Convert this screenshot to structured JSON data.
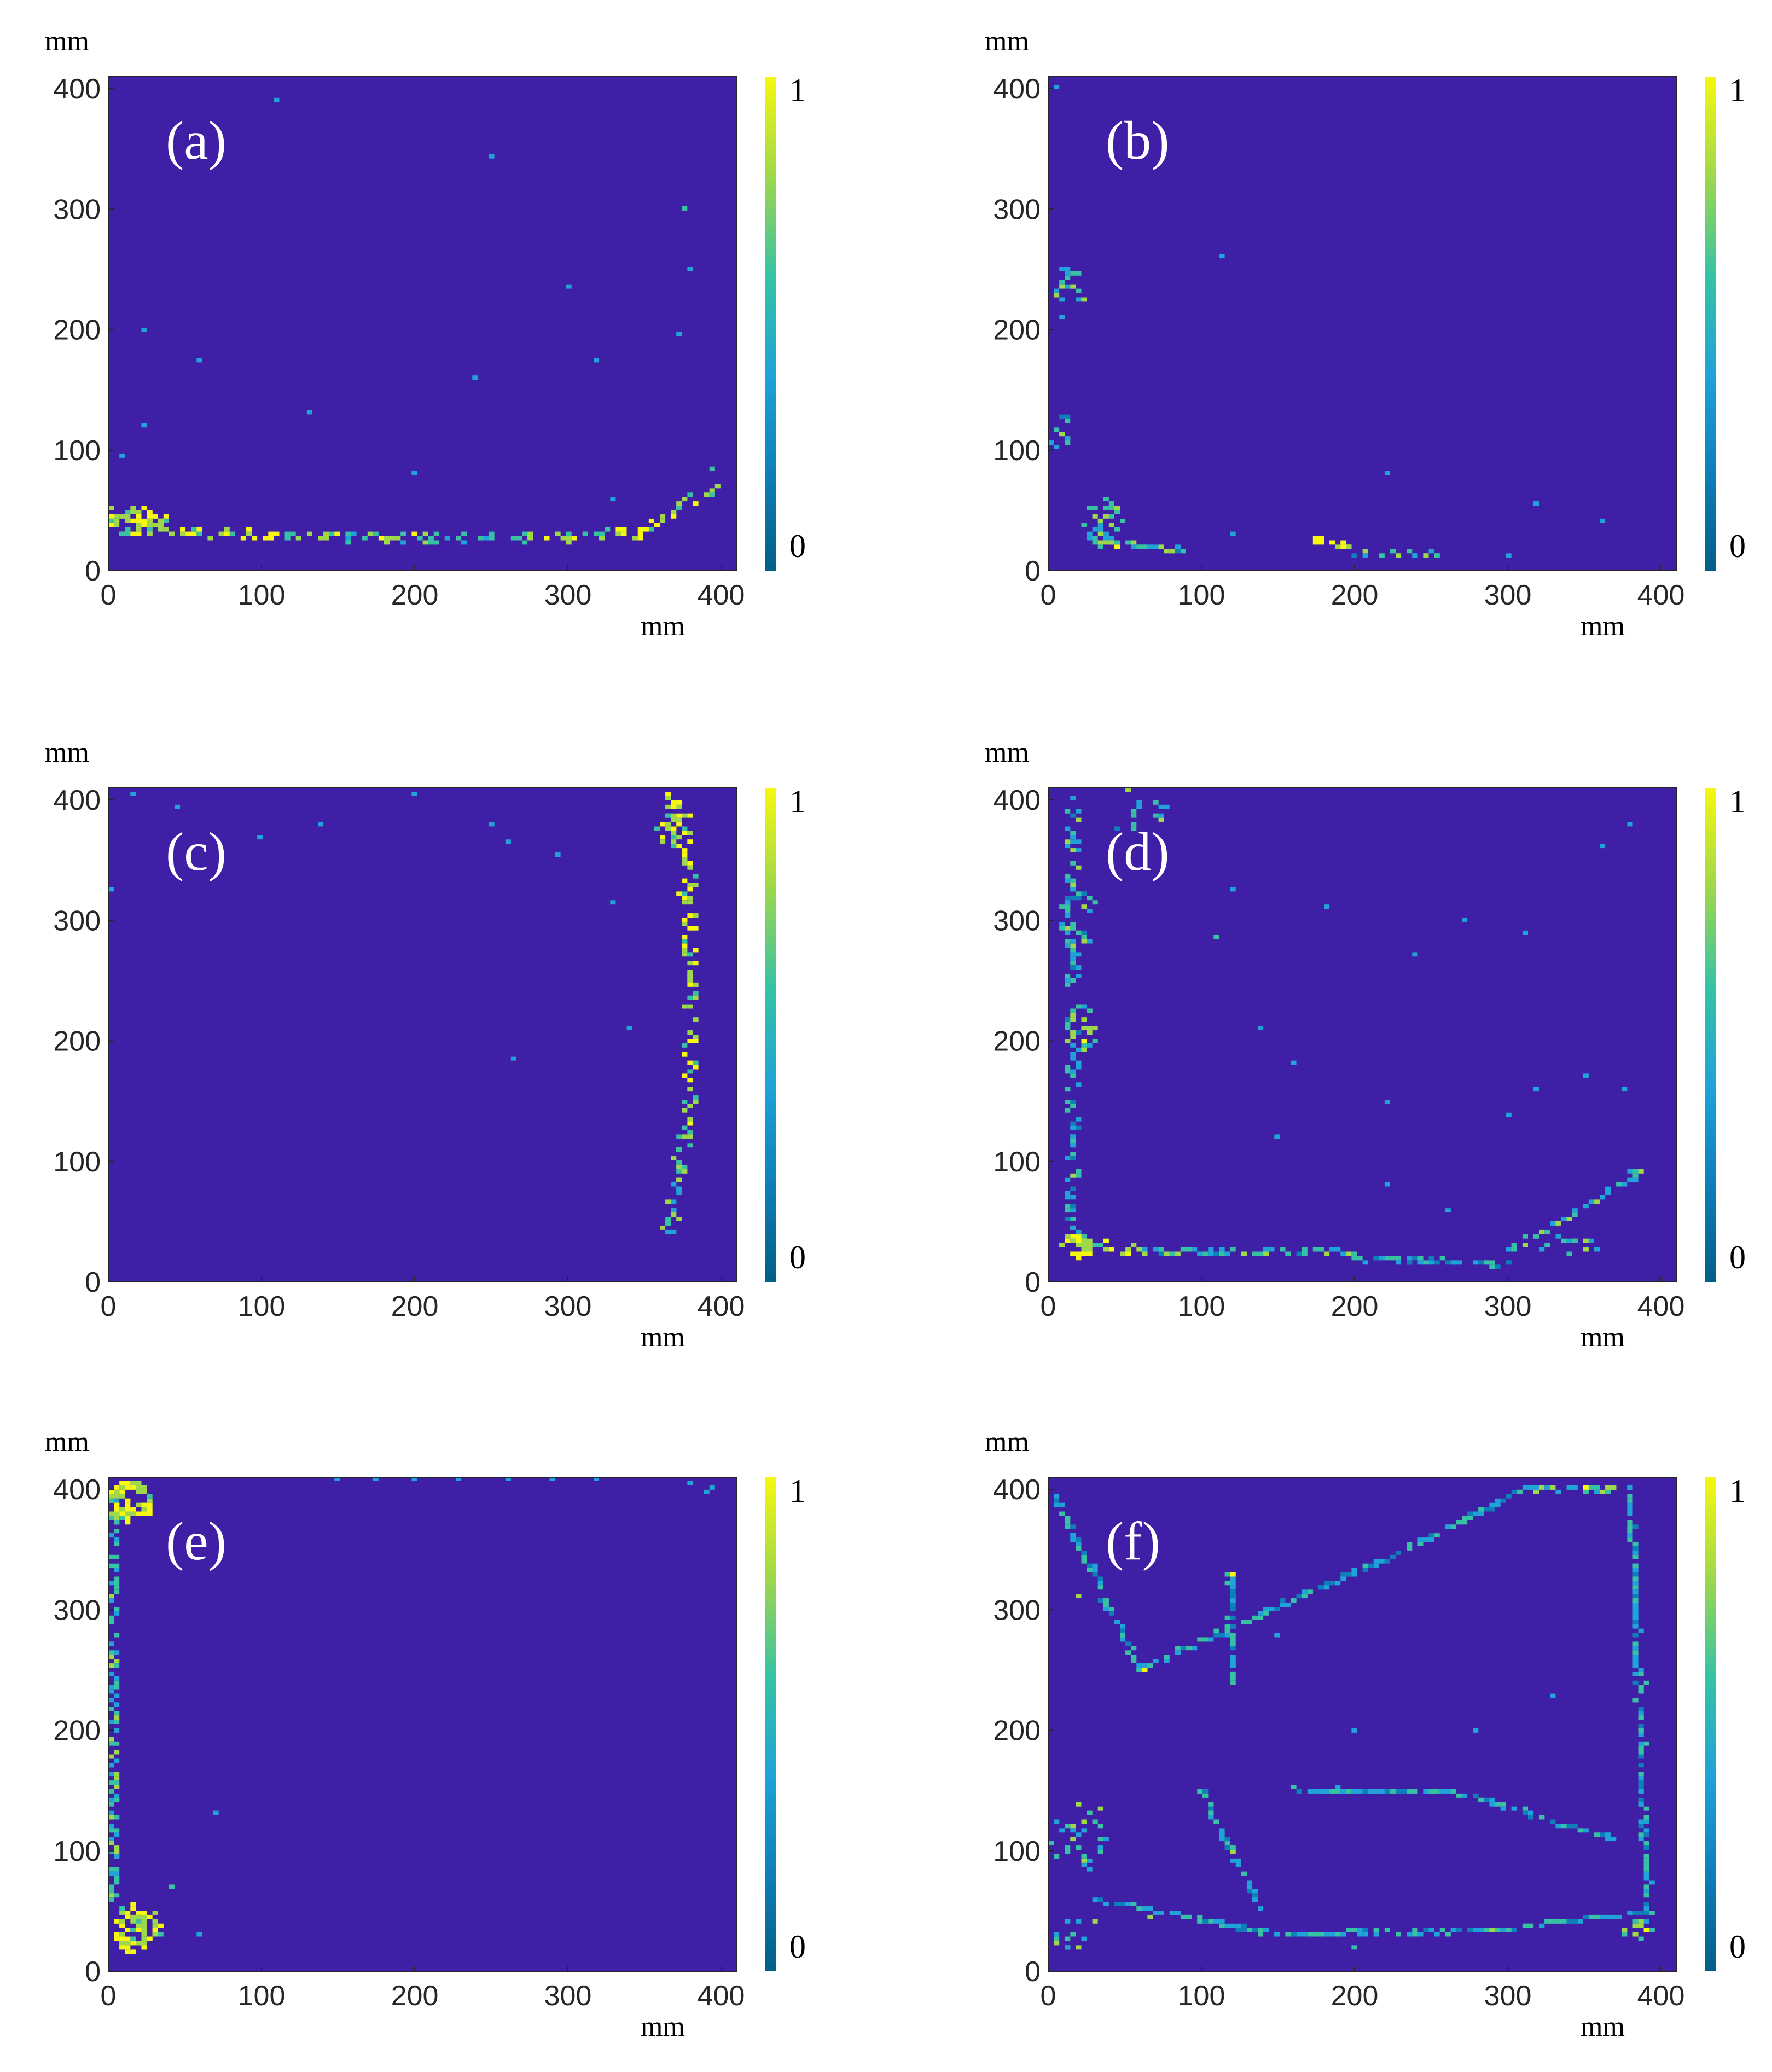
{
  "figure": {
    "colors": {
      "background": "#3F1FA6",
      "colormap": [
        "#005F86",
        "#0F7FBA",
        "#1FA3D8",
        "#37C3A3",
        "#9FD84A",
        "#F7F70F"
      ],
      "text": "#262626"
    }
  },
  "chart_data": [
    {
      "type": "heatmap",
      "panel_label": "(a)",
      "xlabel": "mm",
      "ylabel": "mm",
      "xlim": [
        0,
        410
      ],
      "ylim": [
        0,
        410
      ],
      "xticks": [
        0,
        100,
        200,
        300,
        400
      ],
      "yticks": [
        0,
        100,
        200,
        300,
        400
      ],
      "colorbar": {
        "min_label": "0",
        "max_label": "1",
        "range": [
          0,
          1
        ]
      },
      "background_value": 0,
      "segments": [
        {
          "x0": 5,
          "y0": 50,
          "x1": 40,
          "y1": 35,
          "value": 0.9,
          "width": 10
        },
        {
          "x0": 40,
          "y0": 32,
          "x1": 120,
          "y1": 28,
          "value": 0.85,
          "width": 6
        },
        {
          "x0": 120,
          "y0": 28,
          "x1": 300,
          "y1": 27,
          "value": 0.7,
          "width": 6
        },
        {
          "x0": 300,
          "y0": 28,
          "x1": 350,
          "y1": 32,
          "value": 0.85,
          "width": 8
        },
        {
          "x0": 350,
          "y0": 35,
          "x1": 395,
          "y1": 70,
          "value": 0.8,
          "width": 10
        }
      ],
      "clusters": [
        {
          "x": 20,
          "y": 40,
          "rx": 20,
          "ry": 12,
          "count": 60,
          "value": 0.85
        }
      ],
      "scatter": [
        {
          "x": 375,
          "y": 300,
          "value": 0.5
        },
        {
          "x": 378,
          "y": 250,
          "value": 0.4
        },
        {
          "x": 374,
          "y": 195,
          "value": 0.4
        },
        {
          "x": 395,
          "y": 85,
          "value": 0.5
        },
        {
          "x": 10,
          "y": 95,
          "value": 0.4
        },
        {
          "x": 22,
          "y": 120,
          "value": 0.4
        },
        {
          "x": 25,
          "y": 200,
          "value": 0.4
        },
        {
          "x": 60,
          "y": 175,
          "value": 0.4
        },
        {
          "x": 150,
          "y": 415,
          "value": 0.4
        },
        {
          "x": 240,
          "y": 160,
          "value": 0.4
        },
        {
          "x": 250,
          "y": 345,
          "value": 0.4
        },
        {
          "x": 300,
          "y": 235,
          "value": 0.4
        },
        {
          "x": 320,
          "y": 175,
          "value": 0.4
        },
        {
          "x": 108,
          "y": 390,
          "value": 0.4
        },
        {
          "x": 130,
          "y": 130,
          "value": 0.4
        },
        {
          "x": 200,
          "y": 80,
          "value": 0.4
        },
        {
          "x": 330,
          "y": 60,
          "value": 0.4
        }
      ]
    },
    {
      "type": "heatmap",
      "panel_label": "(b)",
      "xlabel": "mm",
      "ylabel": "mm",
      "xlim": [
        0,
        410
      ],
      "ylim": [
        0,
        410
      ],
      "xticks": [
        0,
        100,
        200,
        300,
        400
      ],
      "yticks": [
        0,
        100,
        200,
        300,
        400
      ],
      "colorbar": {
        "min_label": "0",
        "max_label": "1",
        "range": [
          0,
          1
        ]
      },
      "background_value": 0,
      "segments": [
        {
          "x0": 40,
          "y0": 22,
          "x1": 55,
          "y1": 22,
          "value": 0.9,
          "width": 5
        },
        {
          "x0": 175,
          "y0": 27,
          "x1": 200,
          "y1": 17,
          "value": 0.95,
          "width": 6
        },
        {
          "x0": 55,
          "y0": 20,
          "x1": 90,
          "y1": 17,
          "value": 0.5,
          "width": 3
        },
        {
          "x0": 200,
          "y0": 15,
          "x1": 255,
          "y1": 14,
          "value": 0.5,
          "width": 3
        }
      ],
      "clusters": [
        {
          "x": 35,
          "y": 40,
          "rx": 14,
          "ry": 20,
          "count": 35,
          "value": 0.6
        },
        {
          "x": 14,
          "y": 230,
          "rx": 10,
          "ry": 25,
          "count": 18,
          "value": 0.5
        },
        {
          "x": 10,
          "y": 115,
          "rx": 8,
          "ry": 15,
          "count": 12,
          "value": 0.5
        }
      ],
      "scatter": [
        {
          "x": 5,
          "y": 400,
          "value": 0.4
        },
        {
          "x": 115,
          "y": 260,
          "value": 0.4
        },
        {
          "x": 220,
          "y": 80,
          "value": 0.4
        },
        {
          "x": 320,
          "y": 55,
          "value": 0.4
        },
        {
          "x": 360,
          "y": 40,
          "value": 0.4
        },
        {
          "x": 300,
          "y": 12,
          "value": 0.4
        },
        {
          "x": 120,
          "y": 30,
          "value": 0.4
        }
      ]
    },
    {
      "type": "heatmap",
      "panel_label": "(c)",
      "xlabel": "mm",
      "ylabel": "mm",
      "xlim": [
        0,
        410
      ],
      "ylim": [
        0,
        410
      ],
      "xticks": [
        0,
        100,
        200,
        300,
        400
      ],
      "yticks": [
        0,
        100,
        200,
        300,
        400
      ],
      "colorbar": {
        "min_label": "0",
        "max_label": "1",
        "range": [
          0,
          1
        ]
      },
      "background_value": 0,
      "segments": [
        {
          "x0": 365,
          "y0": 405,
          "x1": 377,
          "y1": 350,
          "value": 0.9,
          "width": 10
        },
        {
          "x0": 377,
          "y0": 350,
          "x1": 382,
          "y1": 250,
          "value": 0.9,
          "width": 9
        },
        {
          "x0": 382,
          "y0": 250,
          "x1": 380,
          "y1": 150,
          "value": 0.85,
          "width": 8
        },
        {
          "x0": 380,
          "y0": 150,
          "x1": 372,
          "y1": 80,
          "value": 0.7,
          "width": 9
        },
        {
          "x0": 372,
          "y0": 80,
          "x1": 365,
          "y1": 40,
          "value": 0.6,
          "width": 8
        }
      ],
      "clusters": [
        {
          "x": 370,
          "y": 380,
          "rx": 12,
          "ry": 20,
          "count": 30,
          "value": 0.8
        }
      ],
      "scatter": [
        {
          "x": 15,
          "y": 405,
          "value": 0.4
        },
        {
          "x": 45,
          "y": 395,
          "value": 0.4
        },
        {
          "x": 100,
          "y": 370,
          "value": 0.4
        },
        {
          "x": 140,
          "y": 380,
          "value": 0.4
        },
        {
          "x": 200,
          "y": 405,
          "value": 0.4
        },
        {
          "x": 250,
          "y": 380,
          "value": 0.4
        },
        {
          "x": 260,
          "y": 365,
          "value": 0.4
        },
        {
          "x": 295,
          "y": 355,
          "value": 0.4
        },
        {
          "x": 330,
          "y": 315,
          "value": 0.4
        },
        {
          "x": 340,
          "y": 210,
          "value": 0.4
        },
        {
          "x": 265,
          "y": 185,
          "value": 0.4
        },
        {
          "x": 0,
          "y": 325,
          "value": 0.4
        }
      ]
    },
    {
      "type": "heatmap",
      "panel_label": "(d)",
      "xlabel": "mm",
      "ylabel": "mm",
      "xlim": [
        0,
        410
      ],
      "ylim": [
        0,
        410
      ],
      "xticks": [
        0,
        100,
        200,
        300,
        400
      ],
      "yticks": [
        0,
        100,
        200,
        300,
        400
      ],
      "colorbar": {
        "min_label": "0",
        "max_label": "1",
        "range": [
          0,
          1
        ]
      },
      "background_value": 0,
      "segments": [
        {
          "x0": 15,
          "y0": 400,
          "x1": 15,
          "y1": 40,
          "value": 0.5,
          "width": 8
        },
        {
          "x0": 15,
          "y0": 35,
          "x1": 60,
          "y1": 25,
          "value": 0.8,
          "width": 10
        },
        {
          "x0": 60,
          "y0": 25,
          "x1": 200,
          "y1": 25,
          "value": 0.5,
          "width": 6
        },
        {
          "x0": 200,
          "y0": 20,
          "x1": 300,
          "y1": 15,
          "value": 0.45,
          "width": 4
        },
        {
          "x0": 300,
          "y0": 25,
          "x1": 390,
          "y1": 95,
          "value": 0.55,
          "width": 6
        }
      ],
      "clusters": [
        {
          "x": 20,
          "y": 30,
          "rx": 10,
          "ry": 10,
          "count": 30,
          "value": 0.9
        },
        {
          "x": 22,
          "y": 210,
          "rx": 10,
          "ry": 20,
          "count": 25,
          "value": 0.7
        },
        {
          "x": 20,
          "y": 300,
          "rx": 15,
          "ry": 25,
          "count": 20,
          "value": 0.5
        },
        {
          "x": 60,
          "y": 390,
          "rx": 20,
          "ry": 20,
          "count": 15,
          "value": 0.5
        },
        {
          "x": 340,
          "y": 30,
          "rx": 20,
          "ry": 8,
          "count": 12,
          "value": 0.6
        }
      ],
      "scatter": [
        {
          "x": 110,
          "y": 285,
          "value": 0.5
        },
        {
          "x": 120,
          "y": 325,
          "value": 0.4
        },
        {
          "x": 180,
          "y": 310,
          "value": 0.4
        },
        {
          "x": 270,
          "y": 300,
          "value": 0.4
        },
        {
          "x": 310,
          "y": 290,
          "value": 0.4
        },
        {
          "x": 240,
          "y": 270,
          "value": 0.4
        },
        {
          "x": 140,
          "y": 210,
          "value": 0.4
        },
        {
          "x": 160,
          "y": 180,
          "value": 0.4
        },
        {
          "x": 220,
          "y": 150,
          "value": 0.4
        },
        {
          "x": 320,
          "y": 160,
          "value": 0.4
        },
        {
          "x": 350,
          "y": 170,
          "value": 0.4
        },
        {
          "x": 375,
          "y": 160,
          "value": 0.4
        },
        {
          "x": 300,
          "y": 140,
          "value": 0.4
        },
        {
          "x": 360,
          "y": 360,
          "value": 0.4
        },
        {
          "x": 380,
          "y": 380,
          "value": 0.4
        },
        {
          "x": 220,
          "y": 80,
          "value": 0.4
        },
        {
          "x": 260,
          "y": 60,
          "value": 0.4
        },
        {
          "x": 150,
          "y": 120,
          "value": 0.4
        }
      ]
    },
    {
      "type": "heatmap",
      "panel_label": "(e)",
      "xlabel": "mm",
      "ylabel": "mm",
      "xlim": [
        0,
        410
      ],
      "ylim": [
        0,
        410
      ],
      "xticks": [
        0,
        100,
        200,
        300,
        400
      ],
      "yticks": [
        0,
        100,
        200,
        300,
        400
      ],
      "colorbar": {
        "min_label": "0",
        "max_label": "1",
        "range": [
          0,
          1
        ]
      },
      "background_value": 0,
      "segments": [
        {
          "x0": 4,
          "y0": 390,
          "x1": 4,
          "y1": 60,
          "value": 0.55,
          "width": 6
        }
      ],
      "clusters": [
        {
          "x": 14,
          "y": 390,
          "rx": 14,
          "ry": 18,
          "count": 60,
          "value": 0.9
        },
        {
          "x": 18,
          "y": 35,
          "rx": 16,
          "ry": 20,
          "count": 80,
          "value": 0.9
        }
      ],
      "scatter": [
        {
          "x": 150,
          "y": 410,
          "value": 0.4
        },
        {
          "x": 175,
          "y": 410,
          "value": 0.4
        },
        {
          "x": 200,
          "y": 410,
          "value": 0.4
        },
        {
          "x": 230,
          "y": 410,
          "value": 0.4
        },
        {
          "x": 260,
          "y": 408,
          "value": 0.4
        },
        {
          "x": 290,
          "y": 410,
          "value": 0.4
        },
        {
          "x": 320,
          "y": 410,
          "value": 0.4
        },
        {
          "x": 380,
          "y": 405,
          "value": 0.4
        },
        {
          "x": 390,
          "y": 398,
          "value": 0.4
        },
        {
          "x": 395,
          "y": 400,
          "value": 0.4
        },
        {
          "x": 70,
          "y": 130,
          "value": 0.4
        },
        {
          "x": 60,
          "y": 30,
          "value": 0.4
        },
        {
          "x": 40,
          "y": 70,
          "value": 0.5
        }
      ]
    },
    {
      "type": "heatmap",
      "panel_label": "(f)",
      "xlabel": "mm",
      "ylabel": "mm",
      "xlim": [
        0,
        410
      ],
      "ylim": [
        0,
        410
      ],
      "xticks": [
        0,
        100,
        200,
        300,
        400
      ],
      "yticks": [
        0,
        100,
        200,
        300,
        400
      ],
      "colorbar": {
        "min_label": "0",
        "max_label": "1",
        "range": [
          0,
          1
        ]
      },
      "background_value": 0,
      "segments": [
        {
          "x0": 5,
          "y0": 395,
          "x1": 60,
          "y1": 250,
          "value": 0.45,
          "width": 3
        },
        {
          "x0": 60,
          "y0": 250,
          "x1": 250,
          "y1": 360,
          "value": 0.4,
          "width": 3
        },
        {
          "x0": 250,
          "y0": 360,
          "x1": 310,
          "y1": 400,
          "value": 0.45,
          "width": 3
        },
        {
          "x0": 310,
          "y0": 400,
          "x1": 380,
          "y1": 400,
          "value": 0.55,
          "width": 3
        },
        {
          "x0": 380,
          "y0": 400,
          "x1": 392,
          "y1": 50,
          "value": 0.45,
          "width": 3
        },
        {
          "x0": 392,
          "y0": 50,
          "x1": 300,
          "y1": 35,
          "value": 0.4,
          "width": 3
        },
        {
          "x0": 300,
          "y0": 35,
          "x1": 150,
          "y1": 30,
          "value": 0.4,
          "width": 3
        },
        {
          "x0": 150,
          "y0": 30,
          "x1": 30,
          "y1": 60,
          "value": 0.4,
          "width": 3
        },
        {
          "x0": 100,
          "y0": 150,
          "x1": 140,
          "y1": 50,
          "value": 0.45,
          "width": 3
        },
        {
          "x0": 160,
          "y0": 150,
          "x1": 260,
          "y1": 150,
          "value": 0.4,
          "width": 3
        },
        {
          "x0": 260,
          "y0": 150,
          "x1": 370,
          "y1": 110,
          "value": 0.4,
          "width": 3
        },
        {
          "x0": 120,
          "y0": 330,
          "x1": 120,
          "y1": 240,
          "value": 0.4,
          "width": 3
        }
      ],
      "clusters": [
        {
          "x": 20,
          "y": 110,
          "rx": 18,
          "ry": 30,
          "count": 30,
          "value": 0.55
        },
        {
          "x": 15,
          "y": 30,
          "rx": 10,
          "ry": 15,
          "count": 12,
          "value": 0.6
        },
        {
          "x": 385,
          "y": 35,
          "rx": 12,
          "ry": 10,
          "count": 12,
          "value": 0.7
        }
      ],
      "scatter": [
        {
          "x": 350,
          "y": 400,
          "value": 0.9
        },
        {
          "x": 120,
          "y": 330,
          "value": 0.9
        },
        {
          "x": 62,
          "y": 250,
          "value": 0.9
        },
        {
          "x": 20,
          "y": 310,
          "value": 0.8
        },
        {
          "x": 120,
          "y": 100,
          "value": 0.8
        },
        {
          "x": 20,
          "y": 140,
          "value": 0.8
        },
        {
          "x": 35,
          "y": 135,
          "value": 0.8
        },
        {
          "x": 290,
          "y": 35,
          "value": 0.7
        },
        {
          "x": 65,
          "y": 45,
          "value": 0.7
        },
        {
          "x": 30,
          "y": 40,
          "value": 0.8
        },
        {
          "x": 200,
          "y": 20,
          "value": 0.5
        },
        {
          "x": 330,
          "y": 230,
          "value": 0.4
        },
        {
          "x": 280,
          "y": 200,
          "value": 0.4
        },
        {
          "x": 200,
          "y": 200,
          "value": 0.4
        },
        {
          "x": 150,
          "y": 280,
          "value": 0.4
        },
        {
          "x": 390,
          "y": 190,
          "value": 0.5
        },
        {
          "x": 392,
          "y": 240,
          "value": 0.5
        }
      ]
    }
  ]
}
